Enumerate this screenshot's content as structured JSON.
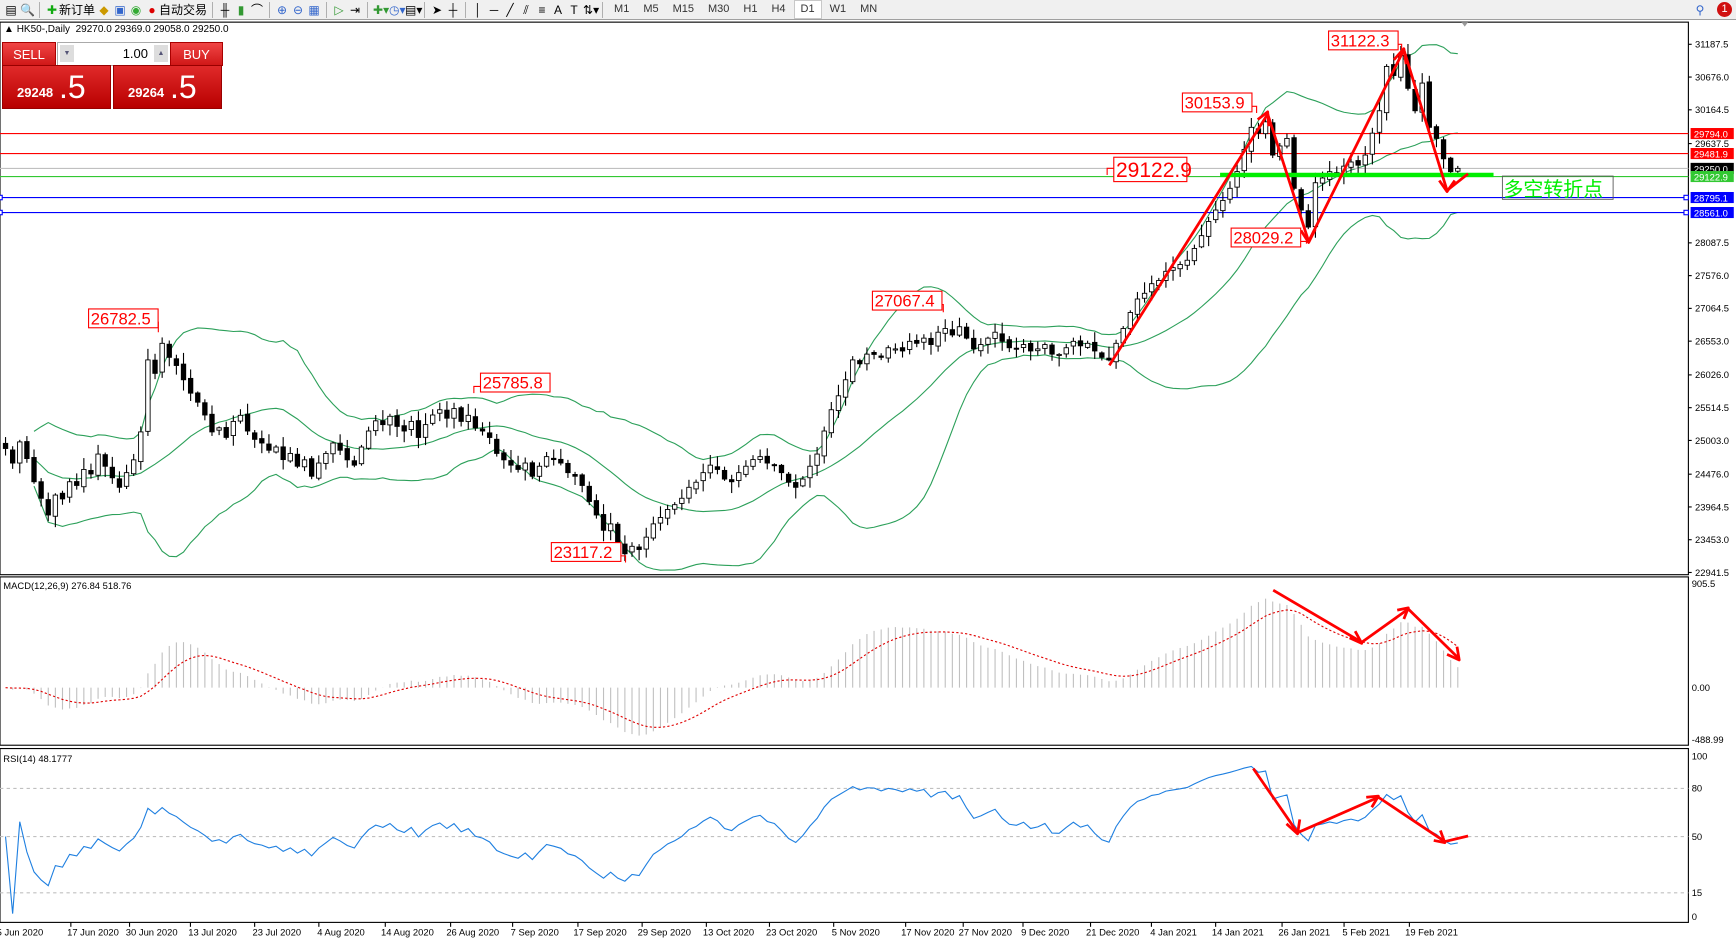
{
  "toolbar": {
    "new_order": "新订单",
    "auto_trading": "自动交易",
    "timeframes": [
      "M1",
      "M5",
      "M15",
      "M30",
      "H1",
      "H4",
      "D1",
      "W1",
      "MN"
    ],
    "selected_timeframe": "D1",
    "notification_count": "1",
    "text_tool": "A"
  },
  "header": {
    "symbol": "HK50-,Daily",
    "ohlc": "29270.0 29369.0 29058.0 29250.0"
  },
  "trade_panel": {
    "sell_label": "SELL",
    "buy_label": "BUY",
    "volume": "1.00",
    "sell_price_main": "29248",
    "sell_price_frac": ".5",
    "buy_price_main": "29264",
    "buy_price_frac": ".5"
  },
  "chart_data": {
    "type": "candlestick",
    "symbol": "HK50-",
    "period": "Daily",
    "price_axis_ticks": [
      "31187.5",
      "30676.0",
      "30164.5",
      "29637.5",
      "28087.5",
      "27576.0",
      "27064.5",
      "26553.0",
      "26026.0",
      "25514.5",
      "25003.0",
      "24476.0",
      "23964.5",
      "23453.0",
      "22941.5"
    ],
    "ylim": [
      22941.5,
      31187.5
    ],
    "date_labels": [
      "5 Jun 2020",
      "17 Jun 2020",
      "30 Jun 2020",
      "13 Jul 2020",
      "23 Jul 2020",
      "4 Aug 2020",
      "14 Aug 2020",
      "26 Aug 2020",
      "7 Sep 2020",
      "17 Sep 2020",
      "29 Sep 2020",
      "13 Oct 2020",
      "23 Oct 2020",
      "5 Nov 2020",
      "17 Nov 2020",
      "27 Nov 2020",
      "9 Dec 2020",
      "21 Dec 2020",
      "4 Jan 2021",
      "14 Jan 2021",
      "26 Jan 2021",
      "5 Feb 2021",
      "19 Feb 2021"
    ],
    "closes": [
      24877,
      24650,
      24980,
      24720,
      24358,
      24100,
      23839,
      24150,
      24090,
      24358,
      24300,
      24550,
      24480,
      24790,
      24600,
      24420,
      24271,
      24500,
      24700,
      25136,
      26260,
      26050,
      26519,
      26300,
      26173,
      25950,
      25741,
      25600,
      25400,
      25136,
      25200,
      25050,
      25300,
      25395,
      25150,
      25020,
      24963,
      24850,
      24900,
      24704,
      24800,
      24600,
      24700,
      24444,
      24650,
      24800,
      24963,
      24850,
      24700,
      24617,
      24900,
      25150,
      25309,
      25250,
      25380,
      25222,
      25150,
      25300,
      25049,
      25250,
      25400,
      25482,
      25350,
      25500,
      25300,
      25395,
      25200,
      25150,
      25049,
      24800,
      24700,
      24617,
      24550,
      24650,
      24444,
      24600,
      24750,
      24704,
      24650,
      24500,
      24444,
      24300,
      24050,
      23839,
      23600,
      23700,
      23407,
      23234,
      23350,
      23300,
      23493,
      23700,
      23800,
      23925,
      24000,
      24100,
      24271,
      24350,
      24500,
      24617,
      24550,
      24400,
      24358,
      24500,
      24600,
      24704,
      24750,
      24650,
      24617,
      24500,
      24350,
      24271,
      24400,
      24600,
      24790,
      25150,
      25482,
      25700,
      25950,
      26260,
      26200,
      26350,
      26346,
      26300,
      26450,
      26432,
      26400,
      26550,
      26519,
      26600,
      26500,
      26692,
      26750,
      26650,
      26778,
      26600,
      26432,
      26500,
      26600,
      26692,
      26550,
      26450,
      26432,
      26500,
      26400,
      26432,
      26500,
      26350,
      26346,
      26450,
      26550,
      26480,
      26519,
      26400,
      26300,
      26260,
      26519,
      26750,
      27000,
      27211,
      27300,
      27450,
      27500,
      27643,
      27700,
      27750,
      27816,
      28000,
      28200,
      28421,
      28600,
      28750,
      28939,
      29200,
      29545,
      29891,
      29800,
      29977,
      29458,
      29600,
      29718,
      28939,
      28600,
      28334,
      29026,
      29100,
      29199,
      29150,
      29285,
      29350,
      29300,
      29458,
      29800,
      30150,
      30842,
      30700,
      31015,
      30500,
      30150,
      30582,
      29891,
      29718,
      29400,
      29199,
      29250
    ],
    "indicators": {
      "bollinger": {
        "color": "#2ca05a"
      },
      "macd": {
        "label": "MACD(12,26,9) 276.84 518.76",
        "ticks": [
          "905.5",
          "0.00",
          "-488.99"
        ],
        "histogram_color": "#c0c0c0",
        "signal_color": "#e00000"
      },
      "rsi": {
        "label": "RSI(14) 48.1777",
        "ticks": [
          "100",
          "80",
          "50",
          "15",
          "0"
        ],
        "color": "#1e7fe0"
      }
    },
    "price_labels": [
      {
        "text": "26782.5"
      },
      {
        "text": "25785.8"
      },
      {
        "text": "23117.2"
      },
      {
        "text": "27067.4"
      },
      {
        "text": "30153.9"
      },
      {
        "text": "28029.2"
      },
      {
        "text": "31122.3"
      },
      {
        "text": "29122.9"
      }
    ],
    "horizontal_levels": [
      {
        "price": "29794.0",
        "color": "#ff0000"
      },
      {
        "price": "29481.9",
        "color": "#ff0000"
      },
      {
        "price": "29250.0",
        "color": "#000000",
        "line_color": "#c0c0c0"
      },
      {
        "price": "29122.9",
        "color": "#32c832"
      },
      {
        "price": "28795.1",
        "color": "#0000ff"
      },
      {
        "price": "28561.0",
        "color": "#0000ff"
      }
    ],
    "annotation_text": "多空转折点",
    "annotation_color": "#00ff00",
    "arrow_color": "#ff0000"
  }
}
